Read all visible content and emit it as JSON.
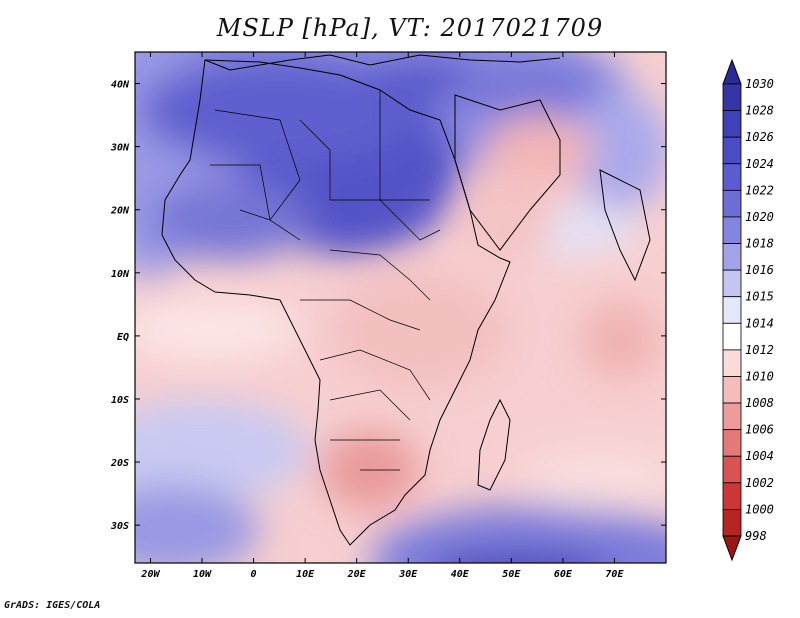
{
  "title": "MSLP [hPa], VT: 2017021709",
  "credit": "GrADS: IGES/COLA",
  "map": {
    "lat_labels": [
      "40N",
      "30N",
      "20N",
      "10N",
      "EQ",
      "10S",
      "20S",
      "30S"
    ],
    "lat_values": [
      40,
      30,
      20,
      10,
      0,
      -10,
      -20,
      -30
    ],
    "lon_labels": [
      "20W",
      "10W",
      "0",
      "10E",
      "20E",
      "30E",
      "40E",
      "50E",
      "60E",
      "70E"
    ],
    "lon_values": [
      -20,
      -10,
      0,
      10,
      20,
      30,
      40,
      50,
      60,
      70
    ],
    "lon_range": [
      -23,
      80
    ],
    "lat_range": [
      -36,
      45
    ]
  },
  "colorbar": {
    "levels": [
      "1030",
      "1028",
      "1026",
      "1024",
      "1022",
      "1020",
      "1018",
      "1016",
      "1015",
      "1014",
      "1012",
      "1010",
      "1008",
      "1006",
      "1004",
      "1002",
      "1000",
      "998"
    ],
    "colors": [
      "#2b2a94",
      "#3535a8",
      "#4040b8",
      "#4b4bc6",
      "#5b5bd2",
      "#6d6dd8",
      "#8585e0",
      "#a3a3ea",
      "#c5c5f2",
      "#e6e6fa",
      "#ffffff",
      "#fbdada",
      "#f5bcbc",
      "#ee9b9b",
      "#e57878",
      "#da5252",
      "#cd3636",
      "#b82323",
      "#9e1414"
    ]
  }
}
